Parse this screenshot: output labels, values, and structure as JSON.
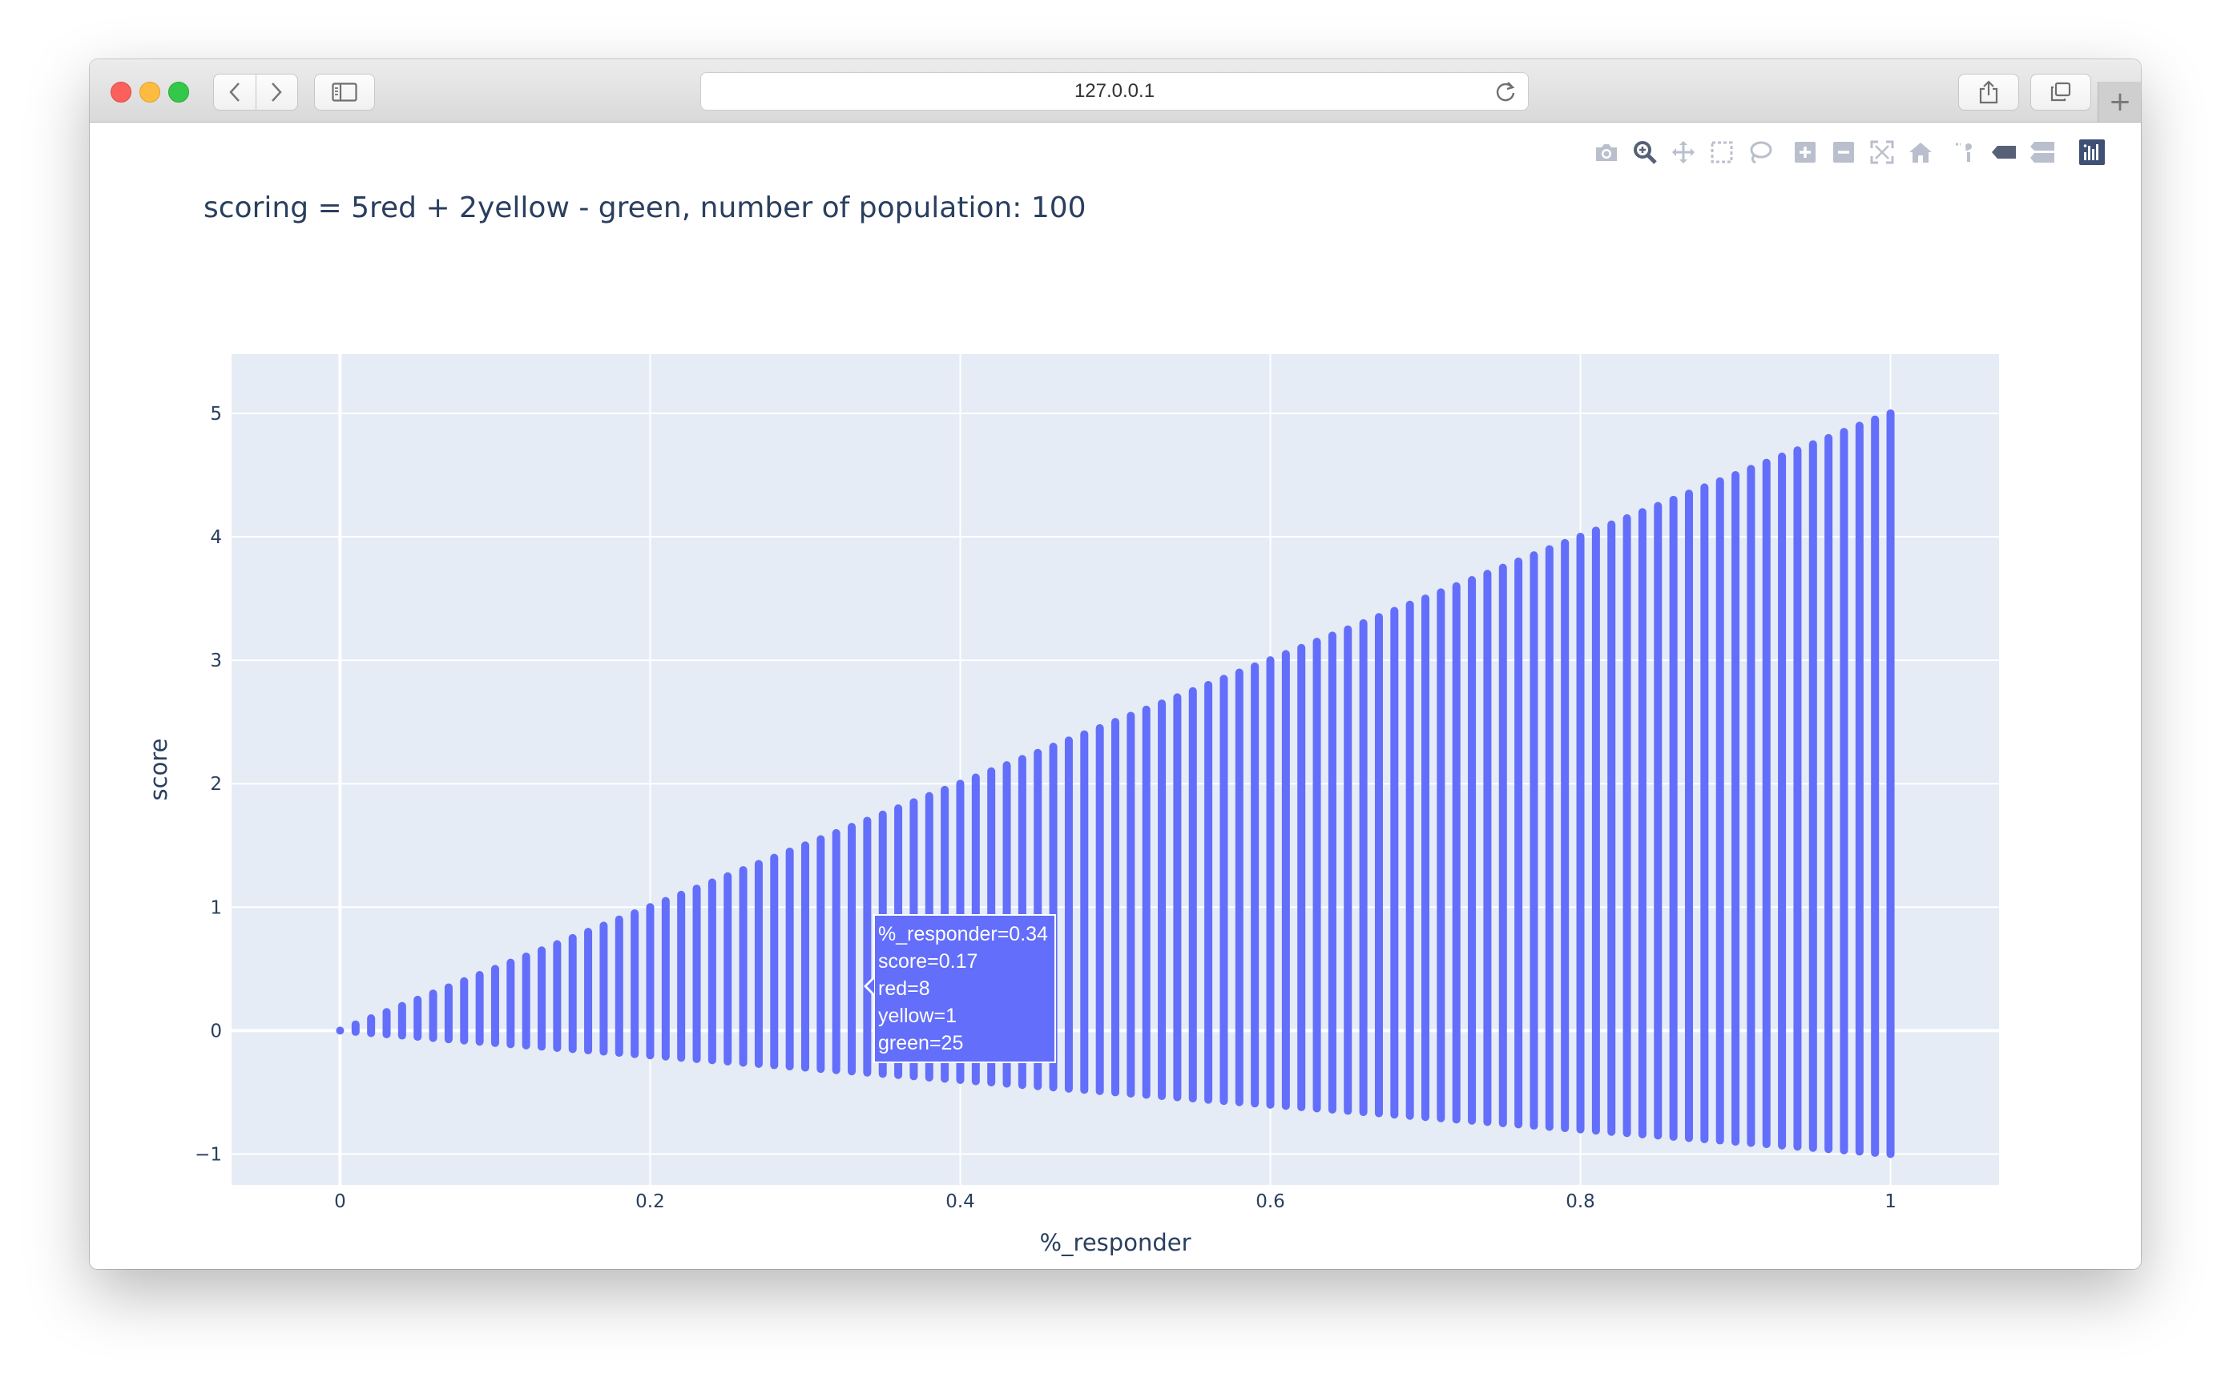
{
  "browser": {
    "address": "127.0.0.1",
    "new_tab_label": "+"
  },
  "modebar": {
    "icons": [
      "camera-icon",
      "zoom-icon",
      "pan-icon",
      "box-select-icon",
      "lasso-select-icon",
      "zoom-in-icon",
      "zoom-out-icon",
      "autoscale-icon",
      "reset-axes-icon",
      "spike-lines-icon",
      "hover-closest-icon",
      "hover-compare-icon",
      "plotly-logo-icon"
    ]
  },
  "chart_data": {
    "type": "scatter",
    "title": "scoring = 5red + 2yellow - green, number of population: 100",
    "xlabel": "%_responder",
    "ylabel": "score",
    "xlim": [
      -0.07,
      1.07
    ],
    "ylim": [
      -1.25,
      5.48
    ],
    "x_ticks": [
      0,
      0.2,
      0.4,
      0.6,
      0.8,
      1
    ],
    "x_tick_labels": [
      "0",
      "0.2",
      "0.4",
      "0.6",
      "0.8",
      "1"
    ],
    "y_ticks": [
      -1,
      0,
      1,
      2,
      3,
      4,
      5
    ],
    "y_tick_labels": [
      "−1",
      "0",
      "1",
      "2",
      "3",
      "4",
      "5"
    ],
    "grid": true,
    "color": "#636efa",
    "series": [
      {
        "x_start": 0,
        "x_end": 1,
        "x_step": 0.01,
        "score_min_per_x": "-x",
        "score_max_per_x": "5x",
        "score_step": 0.01
      }
    ]
  },
  "tooltip": {
    "lines": [
      "%_responder=0.34",
      "score=0.17",
      "red=8",
      "yellow=1",
      "green=25"
    ]
  }
}
